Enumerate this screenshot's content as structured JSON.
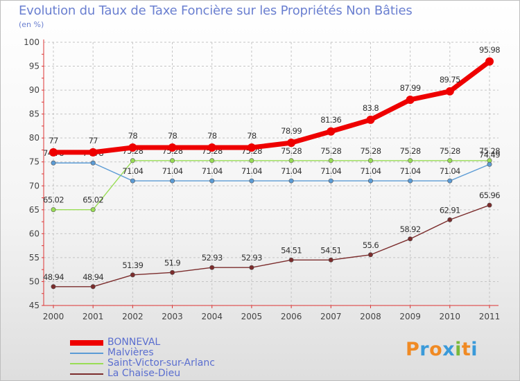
{
  "title": "Evolution du Taux de Taxe Foncière sur les Propriétés Non Bâties",
  "unit_label": "(en %)",
  "brand": {
    "text": "Proxiti",
    "letters": [
      "P",
      "r",
      "o",
      "x",
      "i",
      "t",
      "i"
    ],
    "colors": [
      "#f08a24",
      "#3a9ad9",
      "#f08a24",
      "#3a9ad9",
      "#79b93b",
      "#f08a24",
      "#3a9ad9"
    ]
  },
  "chart_data": {
    "type": "line",
    "categories": [
      "2000",
      "2001",
      "2002",
      "2003",
      "2004",
      "2005",
      "2006",
      "2007",
      "2008",
      "2009",
      "2010",
      "2011"
    ],
    "ylim": [
      45,
      100
    ],
    "yticks": [
      45,
      50,
      55,
      60,
      65,
      70,
      75,
      80,
      85,
      90,
      95,
      100
    ],
    "grid": true,
    "legend_position": "bottom-left",
    "series": [
      {
        "name": "BONNEVAL",
        "color": "#ee0000",
        "labels": [
          "77",
          "77",
          "78",
          "78",
          "78",
          "78",
          "78.99",
          "81.36",
          "83.8",
          "87.99",
          "89.75",
          "95.98"
        ],
        "values": [
          77,
          77,
          78,
          78,
          78,
          78,
          78.99,
          81.36,
          83.8,
          87.99,
          89.75,
          95.98
        ]
      },
      {
        "name": "Malvières",
        "color": "#5b9bd5",
        "labels": [
          "74.78",
          "74.78",
          "71.04",
          "71.04",
          "71.04",
          "71.04",
          "71.04",
          "71.04",
          "71.04",
          "71.04",
          "71.04",
          "74.49"
        ],
        "values": [
          74.78,
          74.78,
          71.04,
          71.04,
          71.04,
          71.04,
          71.04,
          71.04,
          71.04,
          71.04,
          71.04,
          74.49
        ]
      },
      {
        "name": "Saint-Victor-sur-Arlanc",
        "color": "#99dd55",
        "labels": [
          "65.02",
          "65.02",
          "75.28",
          "75.28",
          "75.28",
          "75.28",
          "75.28",
          "75.28",
          "75.28",
          "75.28",
          "75.28",
          "75.28"
        ],
        "values": [
          65.02,
          65.02,
          75.28,
          75.28,
          75.28,
          75.28,
          75.28,
          75.28,
          75.28,
          75.28,
          75.28,
          75.28
        ]
      },
      {
        "name": "La Chaise-Dieu",
        "color": "#7b2c2c",
        "labels": [
          "48.94",
          "48.94",
          "51.39",
          "51.9",
          "52.93",
          "52.93",
          "54.51",
          "54.51",
          "55.6",
          "58.92",
          "62.91",
          "65.96"
        ],
        "values": [
          48.94,
          48.94,
          51.39,
          51.9,
          52.93,
          52.93,
          54.51,
          54.51,
          55.6,
          58.92,
          62.91,
          65.96
        ]
      }
    ]
  }
}
